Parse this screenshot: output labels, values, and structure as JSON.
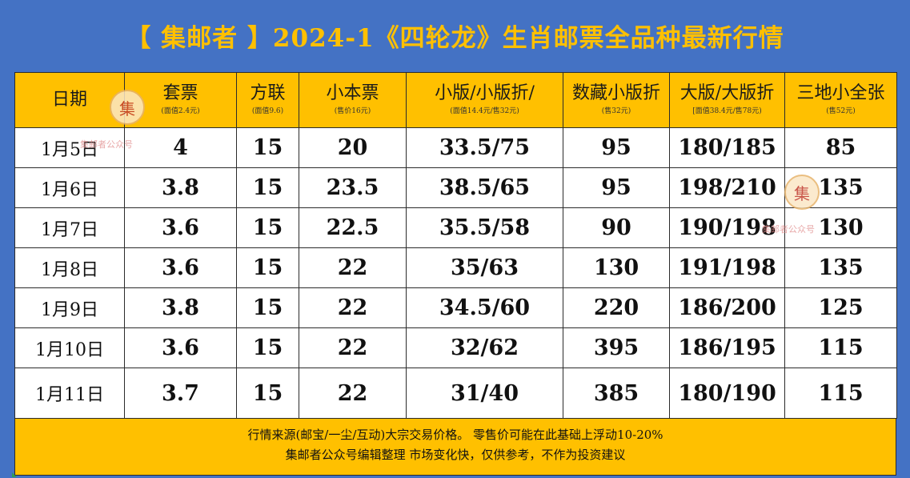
{
  "title": "【 集邮者 】2024-1《四轮龙》生肖邮票全品种最新行情",
  "headers": [
    {
      "label": "日期",
      "sub": ""
    },
    {
      "label": "套票",
      "sub": "(面值2.4元)"
    },
    {
      "label": "方联",
      "sub": "(面值9.6)"
    },
    {
      "label": "小本票",
      "sub": "(售价16元)"
    },
    {
      "label": "小版/小版折/",
      "sub": "(面值14.4元/售32元)"
    },
    {
      "label": "数藏小版折",
      "sub": "(售32元)"
    },
    {
      "label": "大版/大版折",
      "sub": "[面值38.4元/售78元)"
    },
    {
      "label": "三地小全张",
      "sub": "(售52元)"
    }
  ],
  "rows": [
    [
      "1月5日",
      "4",
      "15",
      "20",
      "33.5/75",
      "95",
      "180/185",
      "85"
    ],
    [
      "1月6日",
      "3.8",
      "15",
      "23.5",
      "38.5/65",
      "95",
      "198/210",
      "135"
    ],
    [
      "1月7日",
      "3.6",
      "15",
      "22.5",
      "35.5/58",
      "90",
      "190/198",
      "130"
    ],
    [
      "1月8日",
      "3.6",
      "15",
      "22",
      "35/63",
      "130",
      "191/198",
      "135"
    ],
    [
      "1月9日",
      "3.8",
      "15",
      "22",
      "34.5/60",
      "220",
      "186/200",
      "125"
    ],
    [
      "1月10日",
      "3.6",
      "15",
      "22",
      "32/62",
      "395",
      "186/195",
      "115"
    ],
    [
      "1月11日",
      "3.7",
      "15",
      "22",
      "31/40",
      "385",
      "180/190",
      "115"
    ]
  ],
  "footer": {
    "line1": "行情来源(邮宝/一尘/互动)大宗交易价格。 零售价可能在此基础上浮动10-20%",
    "line2": "集邮者公众号编辑整理 市场变化快，仅供参考，不作为投资建议"
  },
  "watermark": {
    "seal_char": "集",
    "text": "集邮者公众号"
  },
  "colors": {
    "background": "#4472c4",
    "accent": "#ffc000",
    "cell": "#ffffff"
  }
}
